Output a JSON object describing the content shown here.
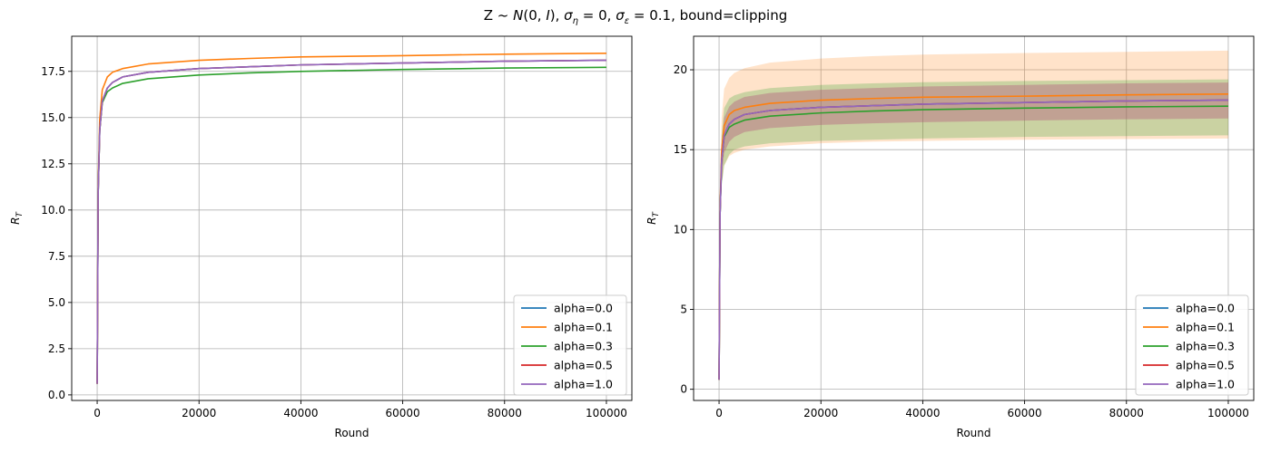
{
  "figure": {
    "title": "Z ~ N(0, I), σ_η = 0, σ_ε = 0.1, bound=clipping"
  },
  "chart_data": [
    {
      "type": "line",
      "title": "",
      "xlabel": "Round",
      "ylabel": "R_T",
      "xlim": [
        -5000,
        105000
      ],
      "ylim": [
        -0.3,
        19.4
      ],
      "xticks": [
        0,
        20000,
        40000,
        60000,
        80000,
        100000
      ],
      "xtick_labels": [
        "0",
        "20000",
        "40000",
        "60000",
        "80000",
        "100000"
      ],
      "yticks": [
        0.0,
        2.5,
        5.0,
        7.5,
        10.0,
        12.5,
        15.0,
        17.5
      ],
      "ytick_labels": [
        "0.0",
        "2.5",
        "5.0",
        "7.5",
        "10.0",
        "12.5",
        "15.0",
        "17.5"
      ],
      "grid": true,
      "legend": "lower-right",
      "x": [
        0,
        100,
        200,
        500,
        1000,
        2000,
        3000,
        5000,
        10000,
        20000,
        30000,
        40000,
        60000,
        80000,
        100000
      ],
      "series": [
        {
          "name": "alpha=0.0",
          "color": "#1f77b4",
          "values": [
            0.6,
            6.0,
            11.0,
            14.3,
            15.9,
            16.6,
            16.9,
            17.2,
            17.45,
            17.65,
            17.75,
            17.85,
            17.95,
            18.05,
            18.1
          ]
        },
        {
          "name": "alpha=0.1",
          "color": "#ff7f0e",
          "values": [
            0.6,
            6.2,
            11.4,
            14.9,
            16.5,
            17.2,
            17.45,
            17.65,
            17.9,
            18.1,
            18.2,
            18.28,
            18.35,
            18.43,
            18.48
          ]
        },
        {
          "name": "alpha=0.3",
          "color": "#2ca02c",
          "values": [
            0.6,
            6.0,
            11.0,
            14.3,
            15.8,
            16.4,
            16.6,
            16.85,
            17.1,
            17.3,
            17.42,
            17.5,
            17.6,
            17.68,
            17.72
          ]
        },
        {
          "name": "alpha=0.5",
          "color": "#d62728",
          "values": [
            0.6,
            6.0,
            11.0,
            14.3,
            15.9,
            16.6,
            16.9,
            17.2,
            17.45,
            17.65,
            17.75,
            17.85,
            17.95,
            18.05,
            18.1
          ]
        },
        {
          "name": "alpha=1.0",
          "color": "#9467bd",
          "values": [
            0.6,
            6.0,
            11.0,
            14.3,
            15.9,
            16.6,
            16.9,
            17.2,
            17.45,
            17.65,
            17.75,
            17.85,
            17.95,
            18.05,
            18.1
          ]
        }
      ]
    },
    {
      "type": "line",
      "title": "",
      "xlabel": "Round",
      "ylabel": "R_T",
      "xlim": [
        -5000,
        105000
      ],
      "ylim": [
        -0.7,
        22.1
      ],
      "xticks": [
        0,
        20000,
        40000,
        60000,
        80000,
        100000
      ],
      "xtick_labels": [
        "0",
        "20000",
        "40000",
        "60000",
        "80000",
        "100000"
      ],
      "yticks": [
        0,
        5,
        10,
        15,
        20
      ],
      "ytick_labels": [
        "0",
        "5",
        "10",
        "15",
        "20"
      ],
      "grid": true,
      "legend": "lower-right",
      "x": [
        0,
        100,
        200,
        500,
        1000,
        2000,
        3000,
        5000,
        10000,
        20000,
        30000,
        40000,
        60000,
        80000,
        100000
      ],
      "bands": [
        {
          "series": "alpha=0.1",
          "color": "#ff7f0e",
          "opacity": 0.22,
          "lower": [
            0.6,
            5.6,
            10.0,
            12.8,
            14.0,
            14.6,
            14.8,
            15.0,
            15.2,
            15.4,
            15.5,
            15.55,
            15.62,
            15.66,
            15.7
          ],
          "upper": [
            0.6,
            7.0,
            13.0,
            17.0,
            18.8,
            19.5,
            19.8,
            20.1,
            20.45,
            20.7,
            20.85,
            20.95,
            21.05,
            21.12,
            21.2
          ]
        },
        {
          "series": "alpha=0.3",
          "color": "#2ca02c",
          "opacity": 0.25,
          "lower": [
            0.6,
            5.5,
            9.9,
            12.7,
            14.0,
            14.7,
            15.0,
            15.2,
            15.4,
            15.55,
            15.62,
            15.7,
            15.8,
            15.85,
            15.9
          ],
          "upper": [
            0.6,
            6.6,
            12.3,
            15.9,
            17.6,
            18.2,
            18.4,
            18.6,
            18.85,
            19.05,
            19.15,
            19.22,
            19.3,
            19.35,
            19.4
          ]
        },
        {
          "series": "alpha=0.5",
          "color": "#d62728",
          "opacity": 0.2,
          "lower": [
            0.6,
            5.6,
            10.2,
            13.3,
            14.8,
            15.5,
            15.8,
            16.1,
            16.35,
            16.55,
            16.65,
            16.72,
            16.82,
            16.9,
            16.95
          ],
          "upper": [
            0.6,
            6.4,
            11.8,
            15.3,
            17.0,
            17.7,
            18.0,
            18.3,
            18.55,
            18.75,
            18.85,
            18.95,
            19.05,
            19.15,
            19.2
          ]
        },
        {
          "series": "alpha=1.0",
          "color": "#9467bd",
          "opacity": 0.2,
          "lower": [
            0.6,
            5.6,
            10.2,
            13.3,
            14.8,
            15.5,
            15.8,
            16.1,
            16.35,
            16.55,
            16.65,
            16.72,
            16.82,
            16.9,
            16.95
          ],
          "upper": [
            0.6,
            6.4,
            11.8,
            15.3,
            17.0,
            17.7,
            18.0,
            18.3,
            18.55,
            18.75,
            18.85,
            18.95,
            19.05,
            19.15,
            19.2
          ]
        }
      ],
      "series": [
        {
          "name": "alpha=0.0",
          "color": "#1f77b4",
          "values": [
            0.6,
            6.0,
            11.0,
            14.3,
            15.9,
            16.6,
            16.9,
            17.2,
            17.45,
            17.65,
            17.75,
            17.85,
            17.95,
            18.05,
            18.1
          ]
        },
        {
          "name": "alpha=0.1",
          "color": "#ff7f0e",
          "values": [
            0.6,
            6.2,
            11.4,
            14.9,
            16.5,
            17.2,
            17.45,
            17.65,
            17.9,
            18.1,
            18.2,
            18.28,
            18.35,
            18.43,
            18.48
          ]
        },
        {
          "name": "alpha=0.3",
          "color": "#2ca02c",
          "values": [
            0.6,
            6.0,
            11.0,
            14.3,
            15.8,
            16.4,
            16.6,
            16.85,
            17.1,
            17.3,
            17.42,
            17.5,
            17.6,
            17.68,
            17.72
          ]
        },
        {
          "name": "alpha=0.5",
          "color": "#d62728",
          "values": [
            0.6,
            6.0,
            11.0,
            14.3,
            15.9,
            16.6,
            16.9,
            17.2,
            17.45,
            17.65,
            17.75,
            17.85,
            17.95,
            18.05,
            18.1
          ]
        },
        {
          "name": "alpha=1.0",
          "color": "#9467bd",
          "values": [
            0.6,
            6.0,
            11.0,
            14.3,
            15.9,
            16.6,
            16.9,
            17.2,
            17.45,
            17.65,
            17.75,
            17.85,
            17.95,
            18.05,
            18.1
          ]
        }
      ]
    }
  ]
}
